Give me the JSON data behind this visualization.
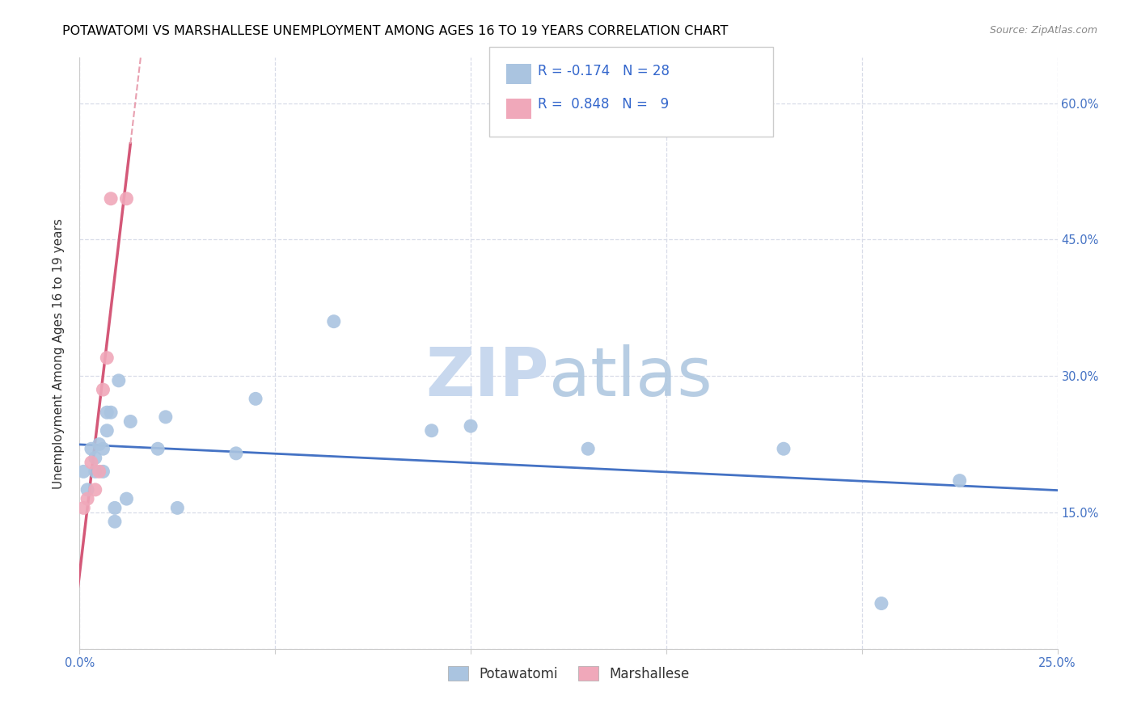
{
  "title": "POTAWATOMI VS MARSHALLESE UNEMPLOYMENT AMONG AGES 16 TO 19 YEARS CORRELATION CHART",
  "source": "Source: ZipAtlas.com",
  "ylabel": "Unemployment Among Ages 16 to 19 years",
  "xlim": [
    0.0,
    0.25
  ],
  "ylim": [
    0.0,
    0.65
  ],
  "xticks": [
    0.0,
    0.05,
    0.1,
    0.15,
    0.2,
    0.25
  ],
  "yticks": [
    0.0,
    0.15,
    0.3,
    0.45,
    0.6
  ],
  "potawatomi_x": [
    0.001,
    0.002,
    0.003,
    0.004,
    0.004,
    0.005,
    0.006,
    0.006,
    0.007,
    0.007,
    0.008,
    0.009,
    0.009,
    0.01,
    0.012,
    0.013,
    0.02,
    0.022,
    0.025,
    0.04,
    0.045,
    0.065,
    0.09,
    0.1,
    0.13,
    0.18,
    0.205,
    0.225
  ],
  "potawatomi_y": [
    0.195,
    0.175,
    0.22,
    0.21,
    0.195,
    0.225,
    0.22,
    0.195,
    0.26,
    0.24,
    0.26,
    0.155,
    0.14,
    0.295,
    0.165,
    0.25,
    0.22,
    0.255,
    0.155,
    0.215,
    0.275,
    0.36,
    0.24,
    0.245,
    0.22,
    0.22,
    0.05,
    0.185
  ],
  "marshallese_x": [
    0.001,
    0.002,
    0.003,
    0.004,
    0.005,
    0.006,
    0.007,
    0.008,
    0.012
  ],
  "marshallese_y": [
    0.155,
    0.165,
    0.205,
    0.175,
    0.195,
    0.285,
    0.32,
    0.495,
    0.495
  ],
  "potawatomi_color": "#aac4e0",
  "marshallese_color": "#f0a8ba",
  "potawatomi_line_color": "#4472c4",
  "marshallese_line_color": "#d45878",
  "marshallese_dash_color": "#e8a0b0",
  "grid_color": "#d8dce8",
  "watermark_zip_color": "#c8d8ee",
  "watermark_atlas_color": "#b0c8e0",
  "legend_potawatomi_R": "-0.174",
  "legend_potawatomi_N": "28",
  "legend_marshallese_R": "0.848",
  "legend_marshallese_N": "9",
  "scatter_size": 150,
  "title_fontsize": 11.5,
  "axis_label_fontsize": 11,
  "tick_fontsize": 10.5,
  "legend_fontsize": 12
}
